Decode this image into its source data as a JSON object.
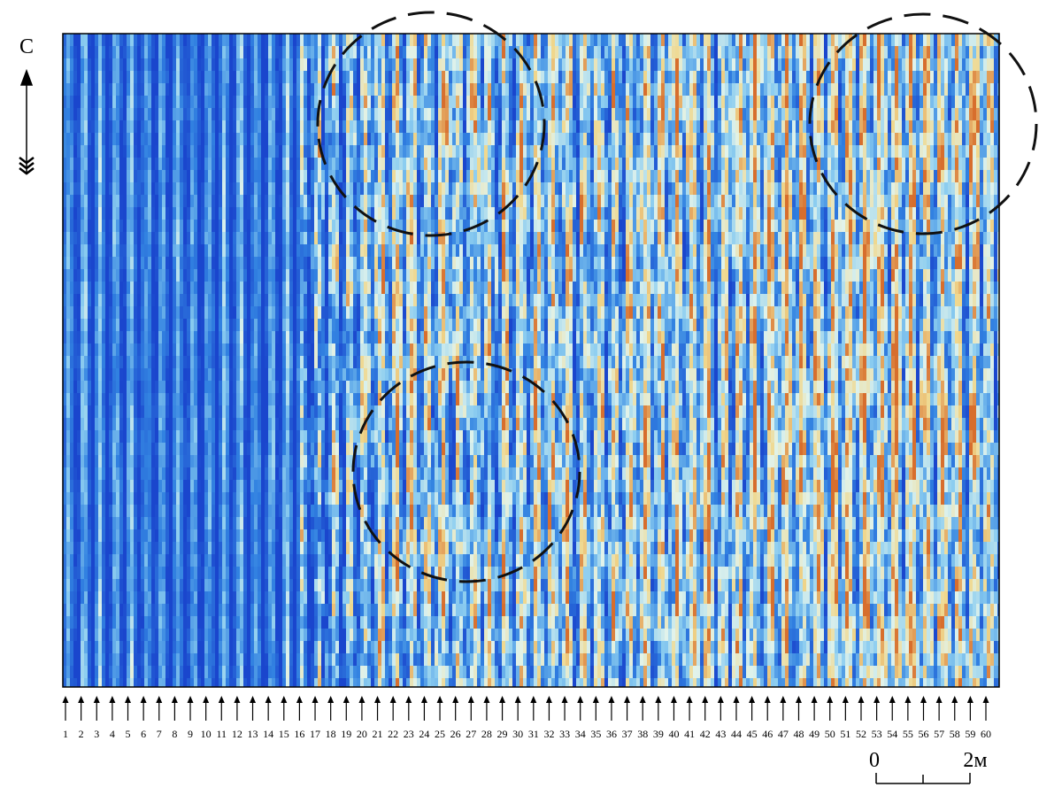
{
  "north_label": "С",
  "profiles": [
    1,
    2,
    3,
    4,
    5,
    6,
    7,
    8,
    9,
    10,
    11,
    12,
    13,
    14,
    15,
    16,
    17,
    18,
    19,
    20,
    21,
    22,
    23,
    24,
    25,
    26,
    27,
    28,
    29,
    30,
    31,
    32,
    33,
    34,
    35,
    36,
    37,
    38,
    39,
    40,
    41,
    42,
    43,
    44,
    45,
    46,
    47,
    48,
    49,
    50,
    51,
    52,
    53,
    54,
    55,
    56,
    57,
    58,
    59,
    60
  ],
  "scale": {
    "start": "0",
    "end": "2м"
  }
}
